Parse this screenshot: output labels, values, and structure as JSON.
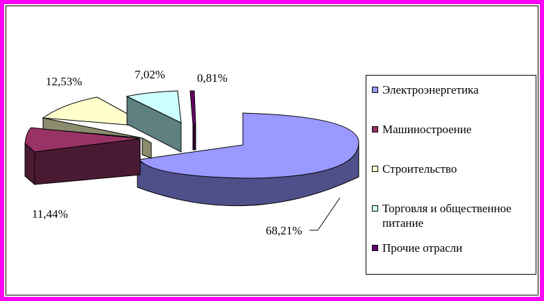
{
  "chart_data": {
    "type": "pie",
    "style": "3d-exploded",
    "categories": [
      "Электроэнергетика",
      "Машиностроение",
      "Строительство",
      "Торговля и общественное питание",
      "Прочие отрасли"
    ],
    "values": [
      68.21,
      11.44,
      12.53,
      7.02,
      0.81
    ],
    "data_labels": [
      "68,21%",
      "11,44%",
      "12,53%",
      "7,02%",
      "0,81%"
    ],
    "legend_position": "right",
    "colors": [
      "#9999ff",
      "#993366",
      "#ffffcc",
      "#ccffff",
      "#660066"
    ],
    "side_colors": [
      "#4f4f8a",
      "#4a1a33",
      "#8c8c6e",
      "#5f8080",
      "#330033"
    ]
  },
  "frame_color": "#ff00ff"
}
